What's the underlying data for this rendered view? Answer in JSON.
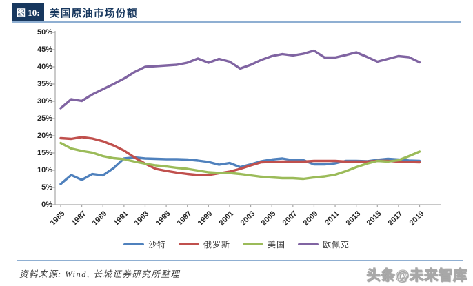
{
  "header": {
    "figure_label": "图 10:",
    "title": "美国原油市场份额"
  },
  "chart_data": {
    "type": "line",
    "title": "美国原油市场份额",
    "xlabel": "",
    "ylabel": "",
    "ylim": [
      0,
      50
    ],
    "y_tick_labels": [
      "0%",
      "5%",
      "10%",
      "15%",
      "20%",
      "25%",
      "30%",
      "35%",
      "40%",
      "45%",
      "50%"
    ],
    "x": [
      1985,
      1986,
      1987,
      1988,
      1989,
      1990,
      1991,
      1992,
      1993,
      1994,
      1995,
      1996,
      1997,
      1998,
      1999,
      2000,
      2001,
      2002,
      2003,
      2004,
      2005,
      2006,
      2007,
      2008,
      2009,
      2010,
      2011,
      2012,
      2013,
      2014,
      2015,
      2016,
      2017,
      2018,
      2019
    ],
    "x_tick_labels": [
      "1985",
      "1987",
      "1989",
      "1991",
      "1993",
      "1995",
      "1997",
      "1999",
      "2001",
      "2003",
      "2005",
      "2007",
      "2009",
      "2011",
      "2013",
      "2015",
      "2017",
      "2019"
    ],
    "grid": false,
    "legend_position": "bottom",
    "series": [
      {
        "name": "沙特",
        "color": "#4F81BD",
        "values": [
          6.0,
          8.6,
          7.2,
          8.9,
          8.5,
          10.6,
          13.4,
          13.7,
          13.4,
          13.3,
          13.2,
          13.2,
          13.1,
          12.8,
          12.4,
          11.6,
          12.1,
          10.9,
          11.7,
          12.6,
          13.1,
          13.4,
          12.9,
          12.9,
          11.7,
          11.7,
          12.0,
          12.7,
          12.7,
          12.6,
          13.0,
          13.3,
          13.1,
          12.8,
          12.7
        ]
      },
      {
        "name": "俄罗斯",
        "color": "#C0504D",
        "values": [
          19.3,
          19.1,
          19.6,
          19.2,
          18.4,
          17.2,
          15.7,
          13.7,
          11.9,
          10.4,
          9.8,
          9.3,
          8.9,
          8.6,
          8.6,
          9.1,
          9.6,
          10.4,
          11.4,
          12.3,
          12.4,
          12.5,
          12.5,
          12.5,
          12.7,
          12.7,
          12.7,
          12.5,
          12.5,
          12.5,
          12.7,
          12.7,
          12.5,
          12.4,
          12.3
        ]
      },
      {
        "name": "美国",
        "color": "#9BBB59",
        "values": [
          17.9,
          16.3,
          15.6,
          15.1,
          14.1,
          13.5,
          13.2,
          12.5,
          11.9,
          11.4,
          11.1,
          10.7,
          10.4,
          9.9,
          9.4,
          9.2,
          9.2,
          8.9,
          8.5,
          8.1,
          7.9,
          7.7,
          7.7,
          7.5,
          7.9,
          8.2,
          8.7,
          9.7,
          10.9,
          11.9,
          12.7,
          12.5,
          12.9,
          14.1,
          15.4
        ]
      },
      {
        "name": "欧佩克",
        "color": "#8064A2",
        "values": [
          28.0,
          30.6,
          30.1,
          32.0,
          33.5,
          35.0,
          36.6,
          38.5,
          40.0,
          40.2,
          40.4,
          40.6,
          41.2,
          42.4,
          41.2,
          42.3,
          41.5,
          39.5,
          40.6,
          42.0,
          43.1,
          43.7,
          43.3,
          43.8,
          44.7,
          42.7,
          42.7,
          43.4,
          44.2,
          42.9,
          41.5,
          42.3,
          43.1,
          42.8,
          41.3
        ]
      }
    ]
  },
  "footer": {
    "source_text": "资料来源: Wind, 长城证券研究所整理"
  },
  "watermark": {
    "text": "头条@未来智库"
  },
  "colors": {
    "header_navy": "#17375E",
    "rule_blue": "#8FAFD2",
    "axis_gray": "#A6A6A6",
    "tick_text": "#262626",
    "legend_text": "#404040"
  }
}
